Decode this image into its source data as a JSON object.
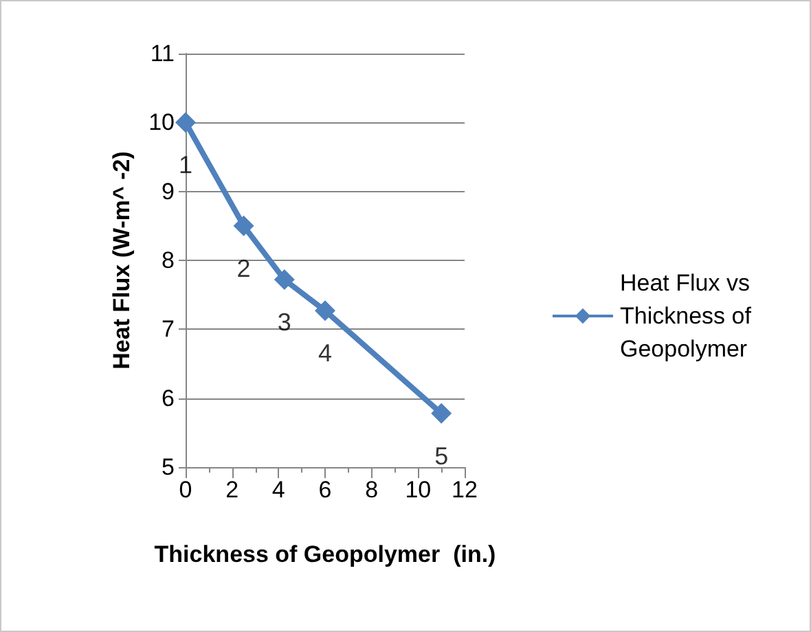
{
  "chart_data": {
    "type": "line",
    "xlabel": "Thickness of Geopolymer  (in.)",
    "ylabel": "Heat Flux (W-m^ -2)",
    "x": [
      0,
      2.5,
      4.25,
      6,
      11
    ],
    "series": [
      {
        "name": "Heat Flux vs Thickness of Geopolymer",
        "color": "#4f81bd",
        "values": [
          10,
          8.5,
          7.72,
          7.27,
          5.78
        ]
      }
    ],
    "annotations": [
      {
        "text": "1",
        "x": 0,
        "y": 10
      },
      {
        "text": "2",
        "x": 2.5,
        "y": 8.5
      },
      {
        "text": "3",
        "x": 4.25,
        "y": 7.72
      },
      {
        "text": "4",
        "x": 6,
        "y": 7.27
      },
      {
        "text": "5",
        "x": 11,
        "y": 5.78
      }
    ],
    "xlim": [
      0,
      12
    ],
    "xticks": [
      0,
      2,
      4,
      6,
      8,
      10,
      12
    ],
    "ylim": [
      5,
      11
    ],
    "yticks": [
      5,
      6,
      7,
      8,
      9,
      10,
      11
    ],
    "grid": "y",
    "legend": "right",
    "marker": "diamond",
    "line_style": "solid"
  }
}
